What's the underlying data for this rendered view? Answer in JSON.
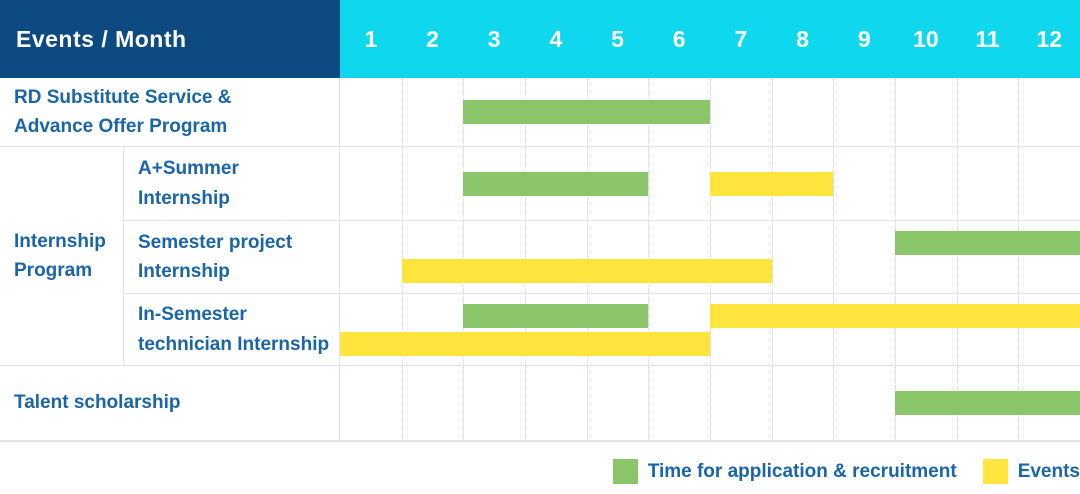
{
  "header": {
    "title": "Events / Month",
    "months": [
      "1",
      "2",
      "3",
      "4",
      "5",
      "6",
      "7",
      "8",
      "9",
      "10",
      "11",
      "12"
    ]
  },
  "colors": {
    "header_bg": "#0d4a82",
    "month_header_bg": "#0fd7ee",
    "label_text": "#1a64a8",
    "application_bar": "#8bc56a",
    "event_bar": "#ffe53e",
    "grid_line": "#d8d8d8"
  },
  "legend": [
    {
      "type": "application",
      "label": "Time for application & recruitment",
      "color": "#8bc56a"
    },
    {
      "type": "event",
      "label": "Events",
      "color": "#ffe53e"
    }
  ],
  "chart_data": {
    "type": "gantt",
    "title": "Events / Month",
    "x_axis_months": [
      1,
      2,
      3,
      4,
      5,
      6,
      7,
      8,
      9,
      10,
      11,
      12
    ],
    "group_label": "Internship Program",
    "rows": [
      {
        "label": "RD Substitute Service &\nAdvance Offer Program",
        "group": null,
        "bars": [
          {
            "type": "application",
            "start": 3,
            "end": 6,
            "lane": "center"
          }
        ]
      },
      {
        "label": "A+Summer\nInternship",
        "group": "Internship Program",
        "bars": [
          {
            "type": "application",
            "start": 3,
            "end": 5,
            "lane": "center"
          },
          {
            "type": "event",
            "start": 7,
            "end": 8,
            "lane": "center"
          }
        ]
      },
      {
        "label": "Semester project\nInternship",
        "group": "Internship Program",
        "bars": [
          {
            "type": "application",
            "start": 10,
            "end": 12,
            "lane": "top"
          },
          {
            "type": "event",
            "start": 2,
            "end": 7,
            "lane": "bottom"
          }
        ]
      },
      {
        "label": "In-Semester\ntechnician Internship",
        "group": "Internship Program",
        "bars": [
          {
            "type": "application",
            "start": 3,
            "end": 5,
            "lane": "top"
          },
          {
            "type": "event",
            "start": 7,
            "end": 12,
            "lane": "top"
          },
          {
            "type": "event",
            "start": 1,
            "end": 6,
            "lane": "bottom"
          }
        ]
      },
      {
        "label": "Talent scholarship",
        "group": null,
        "bars": [
          {
            "type": "application",
            "start": 10,
            "end": 12,
            "lane": "center"
          }
        ]
      }
    ]
  }
}
